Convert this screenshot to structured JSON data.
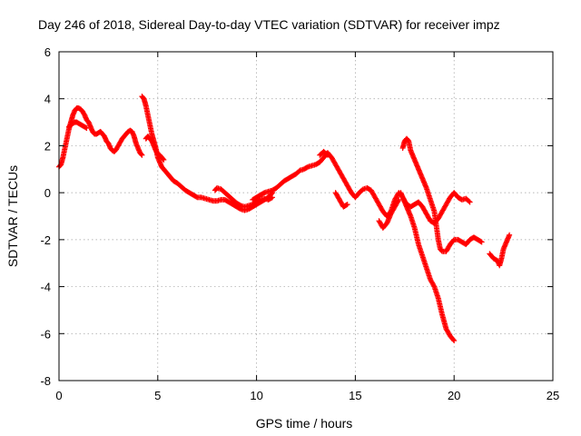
{
  "chart_data": {
    "type": "scatter",
    "title": "Day 246 of 2018, Sidereal Day-to-day VTEC variation (SDTVAR) for receiver impz",
    "xlabel": "GPS time / hours",
    "ylabel": "SDTVAR / TECUs",
    "xlim": [
      0,
      25
    ],
    "ylim": [
      -8,
      6
    ],
    "xticks": [
      "0",
      "5",
      "10",
      "15",
      "20",
      "25"
    ],
    "yticks": [
      "-8",
      "-6",
      "-4",
      "-2",
      "0",
      "2",
      "4",
      "6"
    ],
    "grid": true,
    "legend": "none",
    "marker": "plus",
    "series": [
      {
        "color": "#ff0000",
        "segments": [
          [
            [
              0.0,
              1.1
            ],
            [
              0.1,
              1.2
            ],
            [
              0.2,
              1.5
            ],
            [
              0.3,
              1.9
            ],
            [
              0.4,
              2.3
            ],
            [
              0.5,
              2.7
            ],
            [
              0.6,
              3.0
            ],
            [
              0.7,
              3.3
            ],
            [
              0.8,
              3.5
            ],
            [
              0.9,
              3.6
            ],
            [
              1.0,
              3.6
            ],
            [
              1.1,
              3.55
            ],
            [
              1.2,
              3.45
            ],
            [
              1.3,
              3.3
            ],
            [
              1.4,
              3.1
            ],
            [
              1.5,
              3.0
            ],
            [
              1.6,
              2.8
            ],
            [
              1.7,
              2.6
            ],
            [
              1.8,
              2.5
            ],
            [
              1.9,
              2.5
            ],
            [
              2.0,
              2.55
            ],
            [
              2.1,
              2.6
            ],
            [
              2.2,
              2.5
            ],
            [
              2.3,
              2.4
            ],
            [
              2.4,
              2.2
            ],
            [
              2.5,
              2.1
            ],
            [
              2.6,
              1.9
            ],
            [
              2.7,
              1.8
            ],
            [
              2.8,
              1.75
            ],
            [
              2.9,
              1.85
            ],
            [
              3.0,
              2.0
            ],
            [
              3.1,
              2.15
            ],
            [
              3.2,
              2.3
            ],
            [
              3.3,
              2.4
            ],
            [
              3.4,
              2.5
            ],
            [
              3.5,
              2.6
            ],
            [
              3.6,
              2.65
            ],
            [
              3.7,
              2.6
            ],
            [
              3.8,
              2.4
            ],
            [
              3.9,
              2.1
            ],
            [
              4.0,
              1.9
            ],
            [
              4.1,
              1.7
            ],
            [
              4.2,
              1.6
            ]
          ],
          [
            [
              0.5,
              2.8
            ],
            [
              0.6,
              2.9
            ],
            [
              0.7,
              2.95
            ],
            [
              0.8,
              3.0
            ],
            [
              0.9,
              3.0
            ],
            [
              1.0,
              2.95
            ],
            [
              1.1,
              2.9
            ],
            [
              1.2,
              2.85
            ],
            [
              1.3,
              2.8
            ],
            [
              1.4,
              2.75
            ]
          ],
          [
            [
              4.2,
              4.1
            ],
            [
              4.3,
              4.0
            ],
            [
              4.4,
              3.7
            ],
            [
              4.5,
              3.3
            ],
            [
              4.6,
              2.9
            ],
            [
              4.7,
              2.5
            ],
            [
              4.8,
              2.2
            ],
            [
              4.9,
              1.9
            ],
            [
              5.0,
              1.5
            ],
            [
              5.1,
              1.3
            ],
            [
              5.2,
              1.1
            ],
            [
              5.3,
              1.0
            ],
            [
              5.4,
              0.9
            ],
            [
              5.6,
              0.7
            ],
            [
              5.8,
              0.5
            ],
            [
              6.0,
              0.4
            ],
            [
              6.2,
              0.25
            ],
            [
              6.4,
              0.1
            ],
            [
              6.6,
              0.0
            ],
            [
              6.8,
              -0.1
            ],
            [
              7.0,
              -0.2
            ],
            [
              7.2,
              -0.2
            ],
            [
              7.4,
              -0.25
            ],
            [
              7.6,
              -0.3
            ],
            [
              7.8,
              -0.35
            ],
            [
              8.0,
              -0.35
            ],
            [
              8.2,
              -0.3
            ],
            [
              8.4,
              -0.3
            ],
            [
              8.6,
              -0.4
            ],
            [
              8.8,
              -0.5
            ],
            [
              9.0,
              -0.6
            ],
            [
              9.2,
              -0.7
            ],
            [
              9.4,
              -0.75
            ],
            [
              9.6,
              -0.7
            ],
            [
              9.8,
              -0.6
            ],
            [
              10.0,
              -0.5
            ],
            [
              10.2,
              -0.4
            ],
            [
              10.4,
              -0.3
            ],
            [
              10.6,
              -0.2
            ],
            [
              10.8,
              0.0
            ]
          ],
          [
            [
              4.4,
              2.3
            ],
            [
              4.5,
              2.4
            ],
            [
              4.6,
              2.3
            ],
            [
              4.7,
              2.2
            ],
            [
              4.8,
              2.0
            ],
            [
              4.9,
              1.8
            ],
            [
              5.0,
              1.65
            ],
            [
              5.1,
              1.6
            ],
            [
              5.2,
              1.5
            ],
            [
              5.3,
              1.4
            ]
          ],
          [
            [
              7.9,
              0.1
            ],
            [
              8.0,
              0.2
            ],
            [
              8.2,
              0.15
            ],
            [
              8.4,
              0.0
            ],
            [
              8.6,
              -0.15
            ],
            [
              8.8,
              -0.3
            ],
            [
              9.0,
              -0.45
            ],
            [
              9.2,
              -0.55
            ],
            [
              9.4,
              -0.6
            ],
            [
              9.6,
              -0.55
            ],
            [
              9.8,
              -0.5
            ],
            [
              10.0,
              -0.4
            ],
            [
              10.2,
              -0.3
            ],
            [
              10.4,
              -0.25
            ],
            [
              10.6,
              -0.3
            ],
            [
              10.8,
              -0.2
            ]
          ],
          [
            [
              9.8,
              -0.3
            ],
            [
              10.0,
              -0.2
            ],
            [
              10.2,
              -0.1
            ],
            [
              10.4,
              0.0
            ],
            [
              10.6,
              0.05
            ],
            [
              10.8,
              0.1
            ],
            [
              11.0,
              0.2
            ],
            [
              11.2,
              0.35
            ],
            [
              11.4,
              0.5
            ],
            [
              11.6,
              0.6
            ],
            [
              11.8,
              0.7
            ],
            [
              12.0,
              0.8
            ],
            [
              12.2,
              0.95
            ],
            [
              12.4,
              1.0
            ],
            [
              12.6,
              1.1
            ],
            [
              12.8,
              1.15
            ],
            [
              13.0,
              1.2
            ],
            [
              13.2,
              1.3
            ],
            [
              13.4,
              1.5
            ],
            [
              13.6,
              1.7
            ],
            [
              13.8,
              1.5
            ],
            [
              14.0,
              1.2
            ],
            [
              14.2,
              0.9
            ],
            [
              14.4,
              0.6
            ],
            [
              14.6,
              0.3
            ],
            [
              14.8,
              0.0
            ],
            [
              15.0,
              -0.2
            ],
            [
              15.2,
              0.0
            ],
            [
              15.4,
              0.15
            ],
            [
              15.6,
              0.2
            ],
            [
              15.8,
              0.1
            ],
            [
              16.0,
              -0.2
            ],
            [
              16.2,
              -0.5
            ],
            [
              16.4,
              -0.8
            ],
            [
              16.6,
              -1.0
            ],
            [
              16.8,
              -0.8
            ],
            [
              17.0,
              -0.3
            ],
            [
              17.2,
              0.0
            ],
            [
              17.4,
              -0.2
            ],
            [
              17.6,
              -0.5
            ],
            [
              17.8,
              -0.6
            ],
            [
              18.0,
              -0.5
            ],
            [
              18.2,
              -0.4
            ],
            [
              18.4,
              -0.6
            ],
            [
              18.6,
              -0.9
            ],
            [
              18.8,
              -1.2
            ],
            [
              19.0,
              -1.3
            ],
            [
              19.2,
              -1.1
            ],
            [
              19.4,
              -0.8
            ],
            [
              19.6,
              -0.5
            ],
            [
              19.8,
              -0.2
            ],
            [
              20.0,
              0.0
            ],
            [
              20.2,
              -0.2
            ],
            [
              20.4,
              -0.3
            ],
            [
              20.6,
              -0.25
            ],
            [
              20.8,
              -0.4
            ]
          ],
          [
            [
              13.2,
              1.6
            ],
            [
              13.4,
              1.75
            ],
            [
              13.6,
              1.6
            ]
          ],
          [
            [
              14.0,
              0.0
            ],
            [
              14.4,
              -0.6
            ],
            [
              14.6,
              -0.5
            ]
          ],
          [
            [
              16.2,
              -1.2
            ],
            [
              16.4,
              -1.5
            ],
            [
              16.6,
              -1.3
            ],
            [
              16.8,
              -0.9
            ],
            [
              17.0,
              -0.6
            ],
            [
              17.2,
              -0.3
            ]
          ],
          [
            [
              17.4,
              1.9
            ],
            [
              17.5,
              2.2
            ],
            [
              17.6,
              2.3
            ],
            [
              17.7,
              2.2
            ],
            [
              17.8,
              1.8
            ],
            [
              18.0,
              1.4
            ],
            [
              18.2,
              1.0
            ],
            [
              18.4,
              0.6
            ],
            [
              18.6,
              0.2
            ],
            [
              18.8,
              -0.3
            ],
            [
              19.0,
              -0.8
            ],
            [
              19.1,
              -1.4
            ],
            [
              19.2,
              -2.0
            ],
            [
              19.3,
              -2.4
            ],
            [
              19.4,
              -2.5
            ],
            [
              19.6,
              -2.5
            ],
            [
              19.8,
              -2.2
            ],
            [
              20.0,
              -2.0
            ],
            [
              20.2,
              -2.0
            ],
            [
              20.4,
              -2.1
            ],
            [
              20.6,
              -2.2
            ],
            [
              20.8,
              -2.0
            ],
            [
              21.0,
              -1.9
            ],
            [
              21.2,
              -2.0
            ],
            [
              21.4,
              -2.1
            ]
          ],
          [
            [
              17.3,
              0.0
            ],
            [
              17.4,
              -0.2
            ],
            [
              17.6,
              -0.6
            ],
            [
              17.8,
              -1.0
            ],
            [
              18.0,
              -1.5
            ],
            [
              18.2,
              -2.2
            ],
            [
              18.4,
              -2.7
            ],
            [
              18.6,
              -3.2
            ],
            [
              18.8,
              -3.7
            ],
            [
              19.0,
              -4.0
            ],
            [
              19.2,
              -4.5
            ],
            [
              19.4,
              -5.2
            ],
            [
              19.6,
              -5.8
            ],
            [
              19.8,
              -6.1
            ],
            [
              20.0,
              -6.3
            ]
          ],
          [
            [
              21.8,
              -2.6
            ],
            [
              22.0,
              -2.8
            ],
            [
              22.2,
              -2.9
            ],
            [
              22.3,
              -3.1
            ],
            [
              22.4,
              -2.8
            ],
            [
              22.5,
              -2.4
            ],
            [
              22.6,
              -2.2
            ],
            [
              22.7,
              -2.0
            ],
            [
              22.8,
              -1.8
            ]
          ]
        ]
      }
    ]
  }
}
